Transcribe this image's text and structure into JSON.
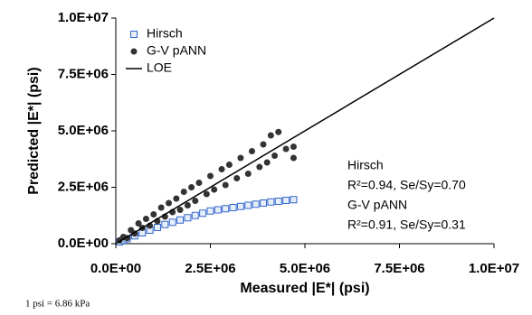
{
  "chart_data": {
    "type": "scatter",
    "xlabel": "Measured |E*| (psi)",
    "ylabel": "Predicted |E*| (psi)",
    "xlim": [
      0,
      10000000
    ],
    "ylim": [
      0,
      10000000
    ],
    "xticks": [
      {
        "value": 0,
        "label": "0.0E+00"
      },
      {
        "value": 2500000,
        "label": "2.5E+06"
      },
      {
        "value": 5000000,
        "label": "5.0E+06"
      },
      {
        "value": 7500000,
        "label": "7.5E+06"
      },
      {
        "value": 10000000,
        "label": "1.0E+07"
      }
    ],
    "yticks": [
      {
        "value": 0,
        "label": "0.0E+00"
      },
      {
        "value": 2500000,
        "label": "2.5E+06"
      },
      {
        "value": 5000000,
        "label": "5.0E+06"
      },
      {
        "value": 7500000,
        "label": "7.5E+06"
      },
      {
        "value": 10000000,
        "label": "1.0E+07"
      }
    ],
    "legend": "upper left",
    "series": [
      {
        "name": "Hirsch",
        "color": "#3366cc",
        "marker": "open-square",
        "x": [
          100000,
          200000,
          300000,
          500000,
          700000,
          900000,
          1100000,
          1300000,
          1500000,
          1700000,
          1900000,
          2100000,
          2300000,
          2500000,
          2700000,
          2900000,
          3100000,
          3300000,
          3500000,
          3700000,
          3900000,
          4100000,
          4300000,
          4500000,
          4700000
        ],
        "values": [
          80000,
          150000,
          220000,
          350000,
          480000,
          600000,
          720000,
          850000,
          950000,
          1050000,
          1150000,
          1250000,
          1350000,
          1450000,
          1500000,
          1550000,
          1600000,
          1650000,
          1700000,
          1750000,
          1800000,
          1850000,
          1880000,
          1920000,
          1950000
        ]
      },
      {
        "name": "G-V pANN",
        "color": "#333333",
        "marker": "circle",
        "x": [
          100000,
          200000,
          300000,
          400000,
          500000,
          600000,
          700000,
          800000,
          900000,
          1000000,
          1100000,
          1200000,
          1300000,
          1400000,
          1500000,
          1600000,
          1700000,
          1800000,
          1900000,
          2000000,
          2100000,
          2200000,
          2400000,
          2500000,
          2600000,
          2800000,
          2900000,
          3000000,
          3200000,
          3300000,
          3500000,
          3600000,
          3800000,
          3900000,
          4000000,
          4100000,
          4200000,
          4300000,
          4500000,
          4700000,
          4700000
        ],
        "values": [
          150000,
          300000,
          250000,
          600000,
          450000,
          900000,
          700000,
          1100000,
          800000,
          1300000,
          1000000,
          1600000,
          1200000,
          1800000,
          1400000,
          2000000,
          1500000,
          2300000,
          1700000,
          2500000,
          1900000,
          2700000,
          2200000,
          3000000,
          2400000,
          3300000,
          2600000,
          3500000,
          2900000,
          3800000,
          3100000,
          4100000,
          3400000,
          4400000,
          3600000,
          4800000,
          3900000,
          4950000,
          4200000,
          4300000,
          3800000
        ]
      },
      {
        "name": "LOE",
        "color": "#000000",
        "marker": "line",
        "x": [
          0,
          10000000
        ],
        "values": [
          0,
          10000000
        ]
      }
    ],
    "annotations": [
      "Hirsch",
      "R²=0.94, Se/Sy=0.70",
      "G-V pANN",
      "R²=0.91, Se/Sy=0.31"
    ],
    "footnote": "1 psi = 6.86 kPa"
  }
}
